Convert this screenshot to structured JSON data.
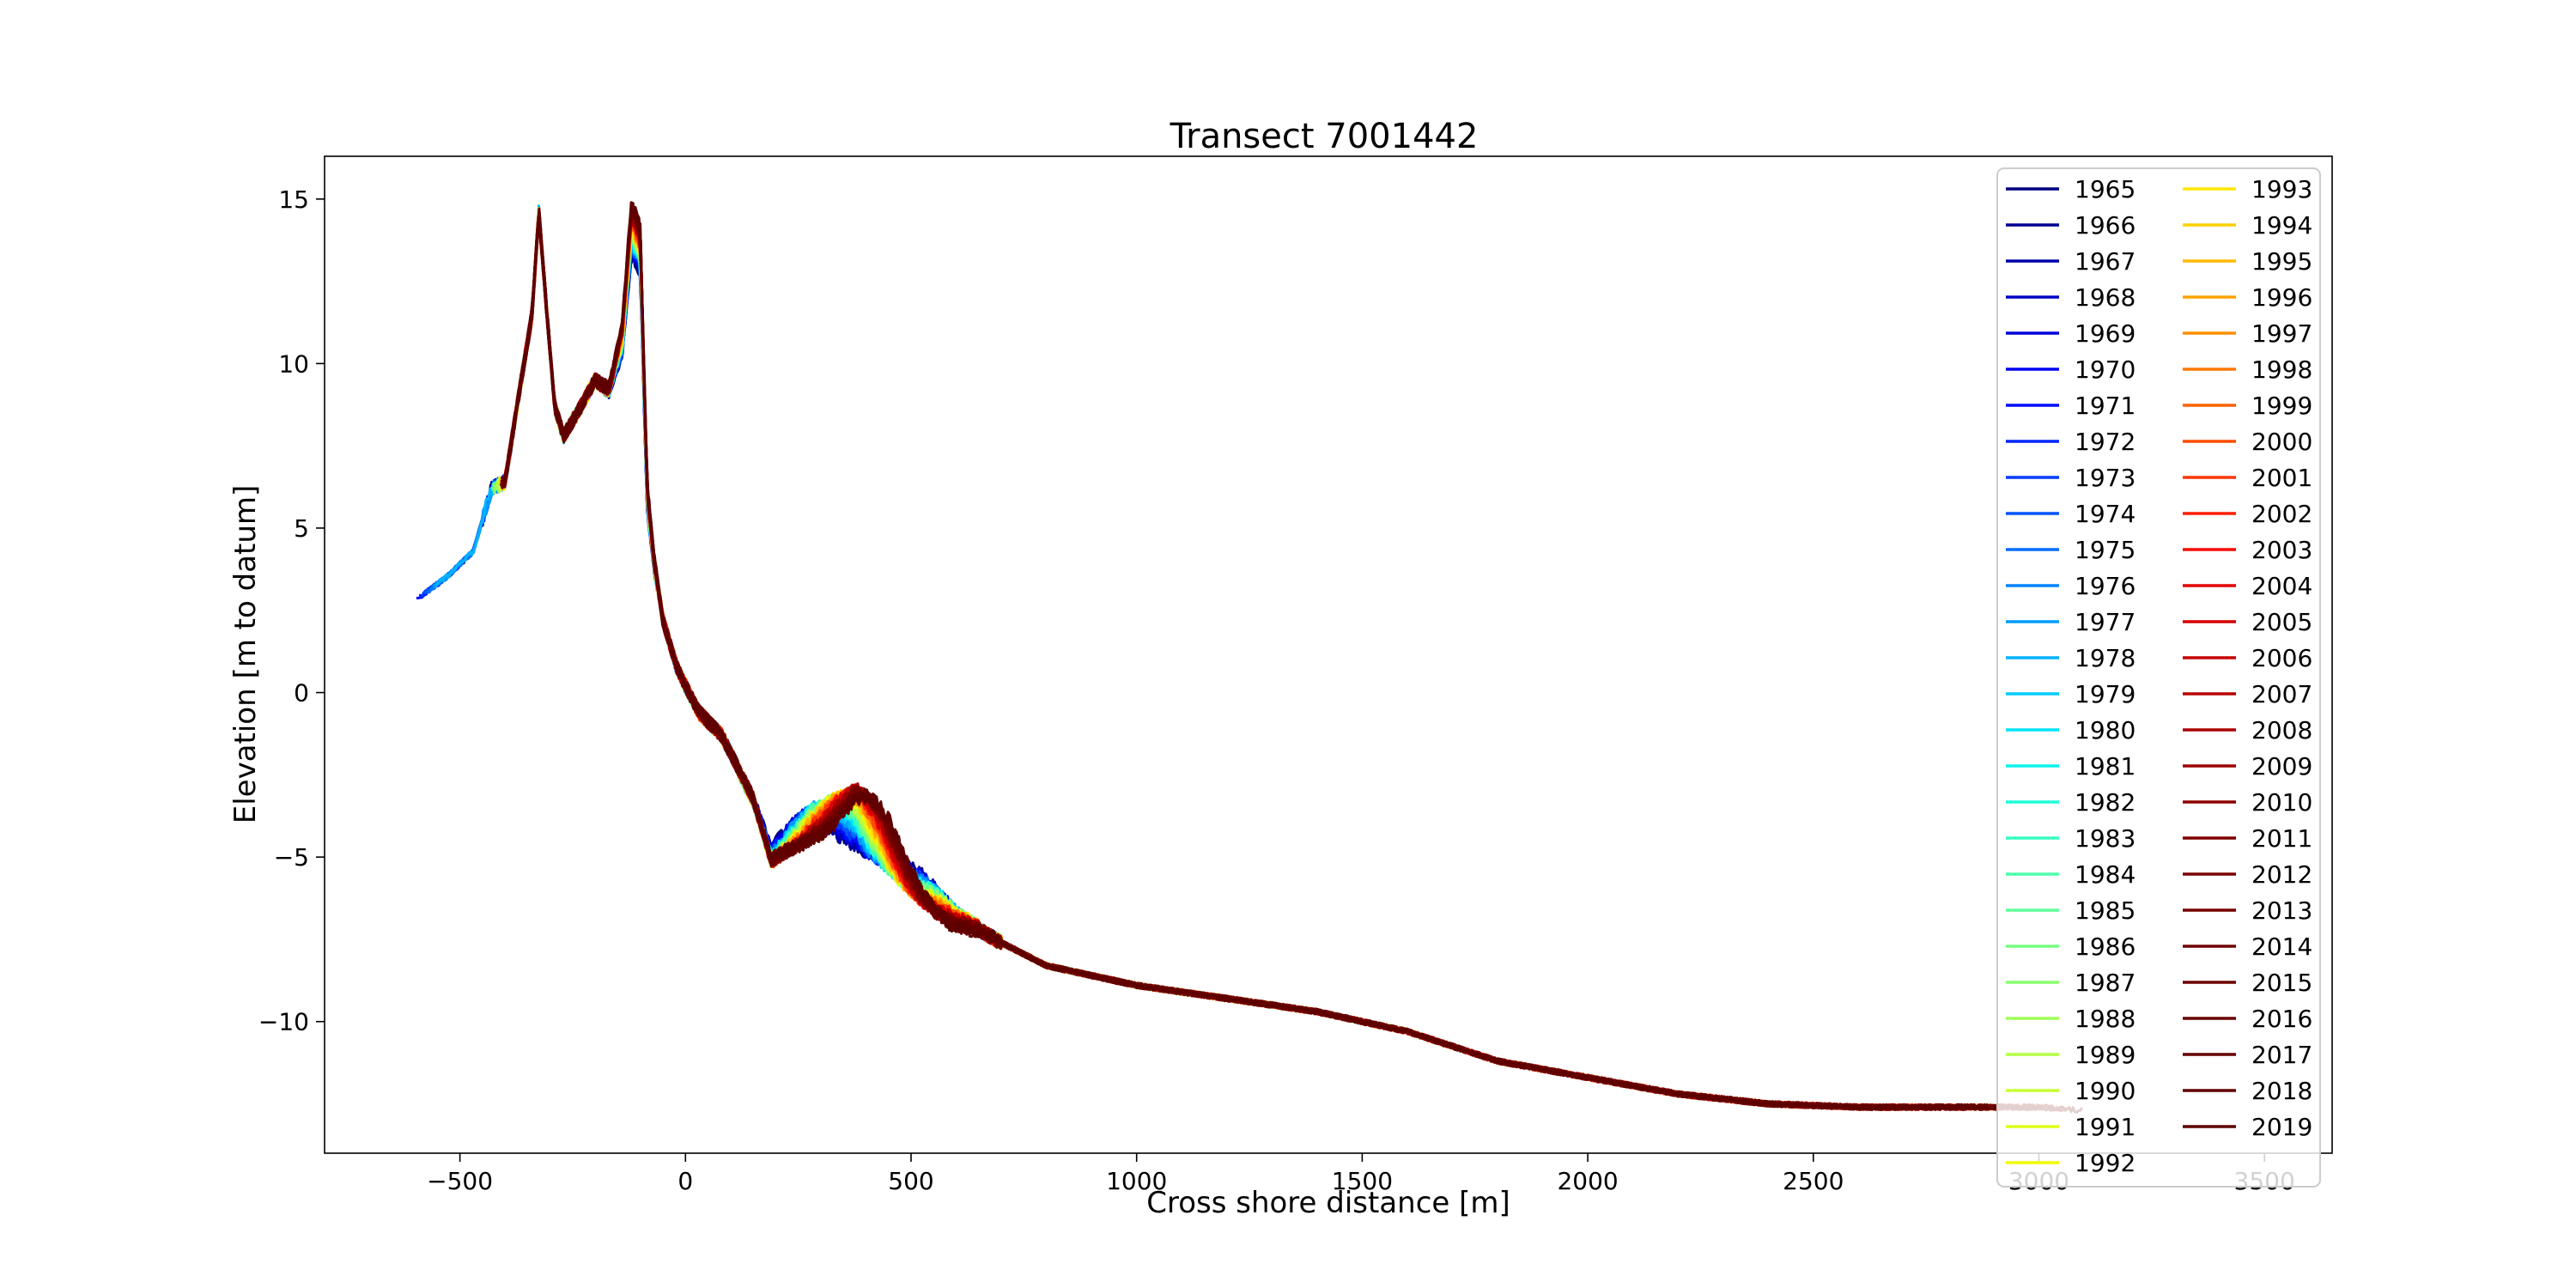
{
  "chart_data": {
    "type": "line",
    "title": "Transect 7001442",
    "xlabel": "Cross shore distance [m]",
    "ylabel": "Elevation [m to datum]",
    "xlim": [
      -800,
      3650
    ],
    "ylim": [
      -14.0,
      16.3
    ],
    "xticks": [
      -500,
      0,
      500,
      1000,
      1500,
      2000,
      2500,
      3000,
      3500
    ],
    "yticks": [
      15,
      10,
      5,
      0,
      -5,
      -10
    ],
    "xtick_labels": [
      "−500",
      "0",
      "500",
      "1000",
      "1500",
      "2000",
      "2500",
      "3000",
      "3500"
    ],
    "ytick_labels": [
      "15",
      "10",
      "5",
      "0",
      "−5",
      "−10"
    ],
    "grid": false,
    "legend": {
      "placement": "top-right",
      "columns": 2
    },
    "colormap": "jet",
    "series": [
      {
        "name": "1965",
        "color": "#000080"
      },
      {
        "name": "1966",
        "color": "#000093"
      },
      {
        "name": "1967",
        "color": "#0000a8"
      },
      {
        "name": "1968",
        "color": "#0000c4"
      },
      {
        "name": "1969",
        "color": "#0000da"
      },
      {
        "name": "1970",
        "color": "#0000f1"
      },
      {
        "name": "1971",
        "color": "#000cff"
      },
      {
        "name": "1972",
        "color": "#0024ff"
      },
      {
        "name": "1973",
        "color": "#003cff"
      },
      {
        "name": "1974",
        "color": "#0054ff"
      },
      {
        "name": "1975",
        "color": "#006cff"
      },
      {
        "name": "1976",
        "color": "#0084ff"
      },
      {
        "name": "1977",
        "color": "#009cff"
      },
      {
        "name": "1978",
        "color": "#00b4ff"
      },
      {
        "name": "1979",
        "color": "#00ccff"
      },
      {
        "name": "1980",
        "color": "#00e4f8"
      },
      {
        "name": "1981",
        "color": "#0cf4eb"
      },
      {
        "name": "1982",
        "color": "#1fffd7"
      },
      {
        "name": "1983",
        "color": "#36ffc1"
      },
      {
        "name": "1984",
        "color": "#4dffaa"
      },
      {
        "name": "1985",
        "color": "#5fff97"
      },
      {
        "name": "1986",
        "color": "#76ff81"
      },
      {
        "name": "1987",
        "color": "#8aff6d"
      },
      {
        "name": "1988",
        "color": "#a0ff57"
      },
      {
        "name": "1989",
        "color": "#b3ff44"
      },
      {
        "name": "1990",
        "color": "#c7ff30"
      },
      {
        "name": "1991",
        "color": "#ddff1a"
      },
      {
        "name": "1992",
        "color": "#f1fc06"
      },
      {
        "name": "1993",
        "color": "#ffe600"
      },
      {
        "name": "1994",
        "color": "#ffd000"
      },
      {
        "name": "1995",
        "color": "#ffb900"
      },
      {
        "name": "1996",
        "color": "#ffa300"
      },
      {
        "name": "1997",
        "color": "#ff8e00"
      },
      {
        "name": "1998",
        "color": "#ff7800"
      },
      {
        "name": "1999",
        "color": "#ff6100"
      },
      {
        "name": "2000",
        "color": "#ff4b00"
      },
      {
        "name": "2001",
        "color": "#ff3600"
      },
      {
        "name": "2002",
        "color": "#ff1f00"
      },
      {
        "name": "2003",
        "color": "#f50b00"
      },
      {
        "name": "2004",
        "color": "#e40000"
      },
      {
        "name": "2005",
        "color": "#d50000"
      },
      {
        "name": "2006",
        "color": "#c60000"
      },
      {
        "name": "2007",
        "color": "#b80000"
      },
      {
        "name": "2008",
        "color": "#aa0000"
      },
      {
        "name": "2009",
        "color": "#9c0000"
      },
      {
        "name": "2010",
        "color": "#8e0000"
      },
      {
        "name": "2011",
        "color": "#800000"
      },
      {
        "name": "2012",
        "color": "#7a0000"
      },
      {
        "name": "2013",
        "color": "#760000"
      },
      {
        "name": "2014",
        "color": "#720000"
      },
      {
        "name": "2015",
        "color": "#6e0000"
      },
      {
        "name": "2016",
        "color": "#6a0000"
      },
      {
        "name": "2017",
        "color": "#660000"
      },
      {
        "name": "2018",
        "color": "#620000"
      },
      {
        "name": "2019",
        "color": "#5e0000"
      }
    ],
    "profile_shape": {
      "description_note": "",
      "x": [
        -600,
        -530,
        -470,
        -430,
        -400,
        -370,
        -340,
        -325,
        -310,
        -290,
        -270,
        -240,
        -200,
        -170,
        -140,
        -120,
        -100,
        -85,
        -70,
        -50,
        -20,
        0,
        30,
        80,
        150,
        190,
        230,
        280,
        330,
        380,
        430,
        500,
        600,
        700,
        800,
        1000,
        1200,
        1400,
        1600,
        1800,
        2000,
        2200,
        2400,
        2600,
        2800,
        3000,
        3100
      ],
      "y": [
        2.8,
        3.5,
        4.3,
        6.2,
        6.4,
        9.0,
        11.5,
        14.6,
        12.0,
        8.7,
        7.8,
        8.5,
        9.5,
        9.2,
        10.8,
        14.2,
        13.5,
        6.0,
        4.0,
        2.2,
        0.8,
        0.2,
        -0.6,
        -1.3,
        -3.2,
        -5.0,
        -4.6,
        -4.2,
        -4.0,
        -3.8,
        -4.3,
        -5.4,
        -6.8,
        -7.6,
        -8.3,
        -8.9,
        -9.3,
        -9.7,
        -10.3,
        -11.2,
        -11.7,
        -12.2,
        -12.5,
        -12.6,
        -12.6,
        -12.6,
        -12.7
      ]
    }
  }
}
